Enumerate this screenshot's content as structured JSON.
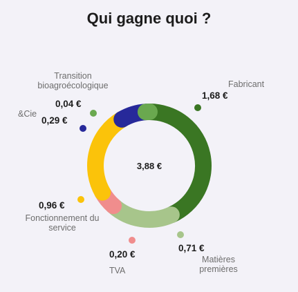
{
  "title": "Qui gagne quoi ?",
  "chart_data": {
    "type": "pie",
    "center_label": "3,88 €",
    "series": [
      {
        "label": "Fabricant",
        "value": 1.68,
        "value_label": "1,68 €",
        "color": "#3a7623"
      },
      {
        "label": "Matières premières",
        "value": 0.71,
        "value_label": "0,71 €",
        "color": "#a7c58b"
      },
      {
        "label": "TVA",
        "value": 0.2,
        "value_label": "0,20 €",
        "color": "#f08d8d"
      },
      {
        "label": "Fonctionnement du service",
        "value": 0.96,
        "value_label": "0,96 €",
        "color": "#fbc30a"
      },
      {
        "label": "&Cie",
        "value": 0.29,
        "value_label": "0,29 €",
        "color": "#27299a"
      },
      {
        "label": "Transition bioagroécologique",
        "value": 0.04,
        "value_label": "0,04 €",
        "color": "#6aa84f"
      }
    ]
  }
}
